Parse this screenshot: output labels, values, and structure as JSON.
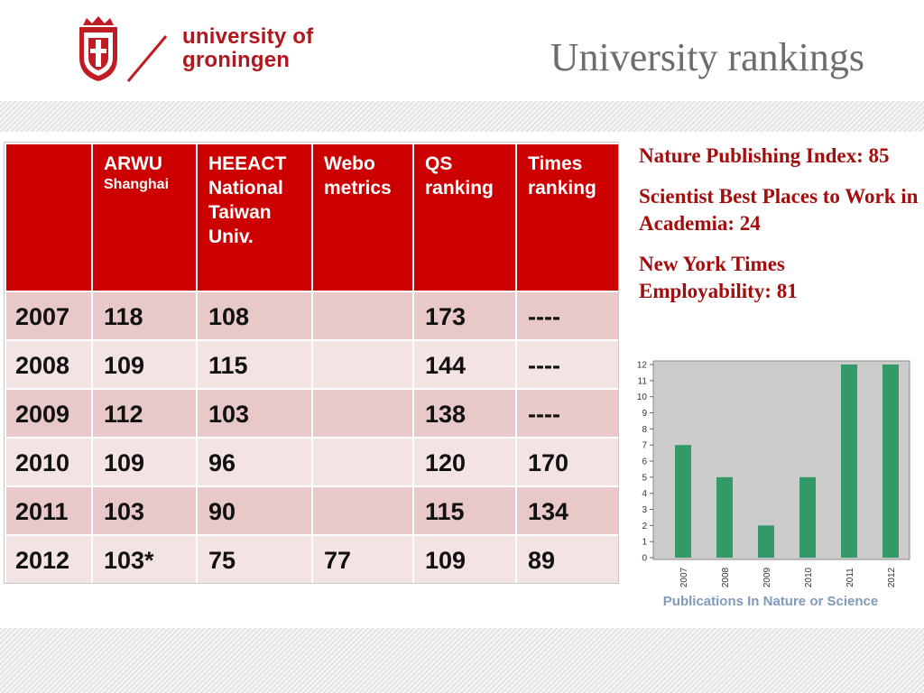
{
  "header": {
    "logo_text_line1": "university of",
    "logo_text_line2": "groningen",
    "title": "University rankings"
  },
  "table": {
    "columns": [
      {
        "label": "",
        "sub": ""
      },
      {
        "label": "ARWU",
        "sub": "Shanghai"
      },
      {
        "label": "HEEACT National Taiwan Univ.",
        "sub": ""
      },
      {
        "label": "Webo metrics",
        "sub": ""
      },
      {
        "label": "QS ranking",
        "sub": ""
      },
      {
        "label": "Times ranking",
        "sub": ""
      }
    ],
    "rows": [
      [
        "2007",
        "118",
        "108",
        "",
        "173",
        "----"
      ],
      [
        "2008",
        "109",
        "115",
        "",
        "144",
        "----"
      ],
      [
        "2009",
        "112",
        "103",
        "",
        "138",
        "----"
      ],
      [
        "2010",
        "109",
        "96",
        "",
        "120",
        "170"
      ],
      [
        "2011",
        "103",
        "90",
        "",
        "115",
        "134"
      ],
      [
        "2012",
        "103*",
        "75",
        "77",
        "109",
        "89"
      ]
    ]
  },
  "side": {
    "item1": "Nature Publishing Index: 85",
    "item2": "Scientist Best Places to Work in Academia: 24",
    "item3": "New York Times Employability: 81"
  },
  "colors": {
    "header_red": "#cc0000",
    "row_dark": "#e8c8c8",
    "row_light": "#f3e3e3",
    "bar_green": "#339966",
    "plot_bg": "#cccccc"
  },
  "chart_data": {
    "type": "bar",
    "categories": [
      "2007",
      "2008",
      "2009",
      "2010",
      "2011",
      "2012"
    ],
    "values": [
      7,
      5,
      2,
      5,
      12,
      12
    ],
    "ylim": [
      0,
      12
    ],
    "yticks": [
      0,
      1,
      2,
      3,
      4,
      5,
      6,
      7,
      8,
      9,
      10,
      11,
      12
    ],
    "grid": false,
    "caption": "Publications In Nature or Science"
  }
}
